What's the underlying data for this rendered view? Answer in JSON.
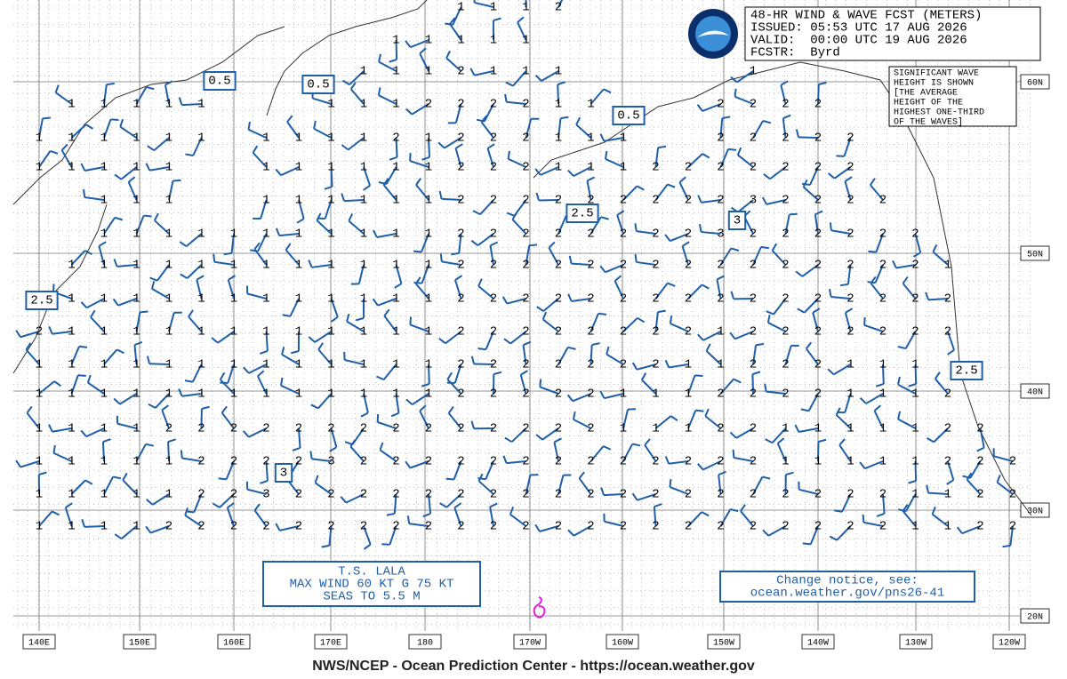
{
  "header": {
    "lines": [
      "48-HR WIND & WAVE FCST (METERS)",
      "ISSUED: 05:53 UTC 17 AUG 2026",
      "VALID:  00:00 UTC 19 AUG 2026",
      "FCSTR:  Byrd"
    ]
  },
  "note": {
    "lines": [
      "SIGNIFICANT WAVE",
      "HEIGHT IS SHOWN",
      "[THE AVERAGE",
      "HEIGHT OF THE",
      "HIGHEST ONE-THIRD",
      "OF THE WAVES]"
    ]
  },
  "storm": {
    "lines": [
      "T.S. LALA",
      "MAX WIND 60 KT G 75 KT",
      "SEAS TO 5.5 M"
    ]
  },
  "notice": {
    "lines": [
      "Change notice, see:",
      "ocean.weather.gov/pns26-41"
    ]
  },
  "footer": "NWS/NCEP - Ocean Prediction Center - https://ocean.weather.gov",
  "latitude_labels": [
    "60N",
    "50N",
    "40N",
    "30N",
    "20N"
  ],
  "longitude_labels": [
    "140E",
    "150E",
    "160E",
    "170E",
    "180",
    "170W",
    "160W",
    "150W",
    "140W",
    "130W",
    "120W"
  ],
  "highlighted_heights": [
    0.5,
    0.5,
    0.5,
    2.5,
    2.5,
    2.5,
    3,
    3
  ],
  "wave_heights": [
    [
      null,
      null,
      null,
      null,
      null,
      null,
      null,
      null,
      null,
      null,
      null,
      null,
      null,
      1,
      1,
      1,
      2,
      null,
      null,
      null,
      null,
      null,
      null,
      null,
      null,
      null,
      null,
      null,
      null,
      null,
      null
    ],
    [
      null,
      null,
      null,
      null,
      null,
      null,
      null,
      null,
      null,
      null,
      null,
      1,
      1,
      1,
      1,
      1,
      null,
      null,
      null,
      null,
      null,
      null,
      null,
      null,
      null,
      null,
      null,
      null,
      null,
      null,
      null
    ],
    [
      null,
      null,
      null,
      null,
      null,
      null,
      null,
      null,
      null,
      null,
      1,
      1,
      1,
      2,
      1,
      1,
      1,
      null,
      null,
      null,
      null,
      null,
      1,
      null,
      null,
      null,
      null,
      null,
      null,
      null,
      null
    ],
    [
      null,
      1,
      1,
      1,
      1,
      1,
      null,
      null,
      null,
      1,
      1,
      1,
      2,
      2,
      2,
      2,
      1,
      1,
      null,
      null,
      null,
      2,
      2,
      2,
      2,
      null,
      null,
      null,
      null,
      null,
      null
    ],
    [
      1,
      1,
      1,
      1,
      1,
      1,
      null,
      1,
      1,
      1,
      1,
      2,
      1,
      2,
      2,
      2,
      1,
      1,
      1,
      null,
      null,
      2,
      2,
      2,
      2,
      2,
      null,
      null,
      null,
      null,
      null
    ],
    [
      1,
      1,
      1,
      1,
      1,
      null,
      null,
      1,
      1,
      1,
      1,
      1,
      1,
      2,
      2,
      2,
      1,
      1,
      1,
      2,
      2,
      2,
      2,
      2,
      2,
      2,
      null,
      null,
      null,
      null,
      null
    ],
    [
      null,
      null,
      1,
      1,
      1,
      null,
      null,
      1,
      1,
      1,
      1,
      1,
      1,
      2,
      2,
      2,
      2,
      2,
      2,
      2,
      2,
      2,
      3,
      2,
      2,
      2,
      2,
      null,
      null,
      null,
      null
    ],
    [
      null,
      null,
      1,
      1,
      1,
      1,
      1,
      1,
      1,
      1,
      1,
      1,
      1,
      2,
      2,
      2,
      2,
      2,
      2,
      2,
      2,
      3,
      2,
      2,
      2,
      2,
      2,
      2,
      null,
      null,
      null
    ],
    [
      null,
      1,
      1,
      1,
      1,
      1,
      1,
      1,
      1,
      1,
      1,
      1,
      1,
      2,
      2,
      2,
      2,
      2,
      2,
      2,
      2,
      2,
      2,
      2,
      2,
      2,
      2,
      2,
      1,
      null,
      null
    ],
    [
      null,
      1,
      1,
      1,
      1,
      1,
      1,
      1,
      1,
      1,
      1,
      1,
      1,
      2,
      2,
      2,
      2,
      2,
      2,
      2,
      2,
      2,
      2,
      2,
      2,
      2,
      2,
      2,
      2,
      null,
      null
    ],
    [
      2,
      1,
      1,
      1,
      1,
      1,
      1,
      1,
      1,
      1,
      1,
      1,
      1,
      2,
      2,
      2,
      2,
      2,
      2,
      2,
      2,
      1,
      2,
      2,
      2,
      2,
      2,
      2,
      2,
      null,
      null
    ],
    [
      1,
      1,
      1,
      1,
      1,
      1,
      1,
      1,
      1,
      1,
      1,
      1,
      1,
      2,
      2,
      2,
      2,
      2,
      2,
      2,
      1,
      1,
      2,
      2,
      2,
      1,
      1,
      1,
      null,
      null,
      null
    ],
    [
      1,
      1,
      1,
      1,
      1,
      1,
      1,
      1,
      1,
      1,
      1,
      1,
      1,
      2,
      2,
      2,
      2,
      2,
      1,
      1,
      1,
      2,
      2,
      2,
      2,
      1,
      1,
      1,
      2,
      null,
      null
    ],
    [
      1,
      1,
      1,
      1,
      2,
      2,
      2,
      2,
      2,
      2,
      2,
      2,
      2,
      2,
      2,
      2,
      2,
      2,
      1,
      1,
      1,
      2,
      2,
      1,
      1,
      1,
      1,
      1,
      2,
      2,
      null
    ],
    [
      1,
      1,
      1,
      1,
      1,
      2,
      2,
      2,
      2,
      3,
      2,
      2,
      2,
      2,
      2,
      2,
      2,
      2,
      2,
      2,
      2,
      2,
      2,
      1,
      1,
      1,
      1,
      1,
      2,
      2,
      2
    ],
    [
      1,
      1,
      1,
      1,
      1,
      2,
      2,
      3,
      2,
      2,
      2,
      2,
      2,
      2,
      2,
      2,
      2,
      2,
      2,
      2,
      2,
      2,
      2,
      2,
      2,
      2,
      2,
      1,
      1,
      2,
      2
    ],
    [
      1,
      1,
      1,
      1,
      2,
      2,
      2,
      2,
      2,
      2,
      2,
      2,
      2,
      2,
      2,
      2,
      2,
      2,
      2,
      2,
      2,
      2,
      2,
      2,
      2,
      2,
      2,
      1,
      1,
      2,
      2
    ]
  ]
}
